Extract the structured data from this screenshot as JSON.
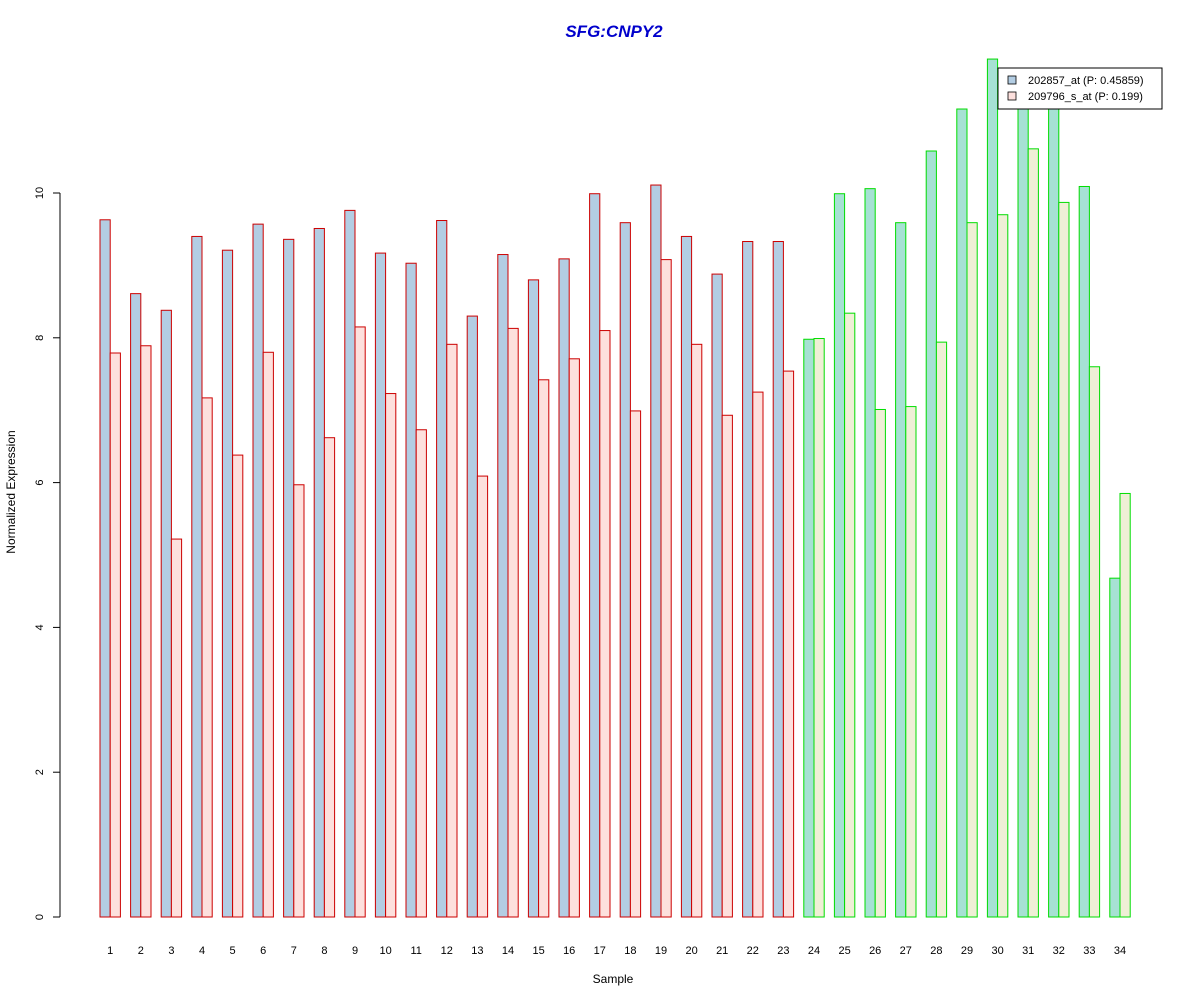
{
  "chart_data": {
    "type": "bar",
    "title": "SFG:CNPY2",
    "xlabel": "Sample",
    "ylabel": "Normalized Expression",
    "ylim": [
      0,
      12
    ],
    "yticks": [
      0,
      2,
      4,
      6,
      8,
      10
    ],
    "grid": false,
    "legend_position": "top-right",
    "categories": [
      "1",
      "2",
      "3",
      "4",
      "5",
      "6",
      "7",
      "8",
      "9",
      "10",
      "11",
      "12",
      "13",
      "14",
      "15",
      "16",
      "17",
      "18",
      "19",
      "20",
      "21",
      "22",
      "23",
      "24",
      "25",
      "26",
      "27",
      "28",
      "29",
      "30",
      "31",
      "32",
      "33",
      "34"
    ],
    "group_a_count": 23,
    "series": [
      {
        "name": "202857_at (P: 0.45859)",
        "values": [
          9.63,
          8.61,
          8.38,
          9.4,
          9.21,
          9.57,
          9.36,
          9.51,
          9.76,
          9.17,
          9.03,
          9.62,
          8.3,
          9.15,
          8.8,
          9.09,
          9.99,
          9.59,
          10.11,
          9.4,
          8.88,
          9.33,
          9.33,
          7.98,
          9.99,
          10.06,
          9.59,
          10.58,
          11.16,
          11.85,
          11.22,
          11.22,
          10.09,
          4.68
        ]
      },
      {
        "name": "209796_s_at (P: 0.199)",
        "values": [
          7.79,
          7.89,
          5.22,
          7.17,
          6.38,
          7.8,
          5.97,
          6.62,
          8.15,
          7.23,
          6.73,
          7.91,
          6.09,
          8.13,
          7.42,
          7.71,
          8.1,
          6.99,
          9.08,
          7.91,
          6.93,
          7.25,
          7.54,
          7.99,
          8.34,
          7.01,
          7.05,
          7.94,
          9.59,
          9.7,
          10.61,
          9.87,
          7.6,
          5.85
        ]
      }
    ],
    "colors": {
      "title": "#0000cc",
      "series_a_fill": "#b3cde3",
      "series_b_fill": "#fde0dd",
      "series_a_fill_group2": "#a6e1d4",
      "series_b_fill_group2": "#efefd6",
      "border_group1": "#cc0000",
      "border_group2": "#00dd00",
      "legend_box_a": "#b3cde3",
      "legend_box_b": "#fde0dd"
    }
  }
}
